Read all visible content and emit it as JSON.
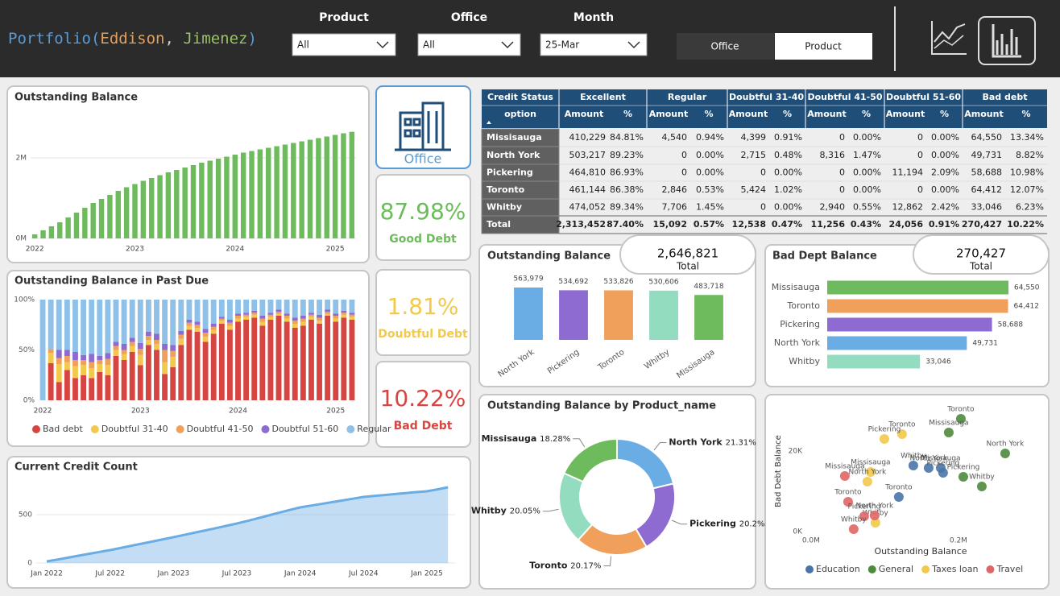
{
  "header": {
    "title": "Portfolio(Eddison, Jimenez)",
    "filters": [
      {
        "label": "Product",
        "value": "All"
      },
      {
        "label": "Office",
        "value": "All"
      },
      {
        "label": "Month",
        "value": "25-Mar"
      }
    ],
    "toggle": [
      "Office",
      "Product"
    ]
  },
  "kpis": {
    "icon_label": "Office",
    "items": [
      {
        "value": "87.98%",
        "label": "Good Debt",
        "color": "#6dbb5d"
      },
      {
        "value": "1.81%",
        "label": "Doubtful Debt",
        "color": "#f2c94c"
      },
      {
        "value": "10.22%",
        "label": "Bad Debt",
        "color": "#d64541"
      }
    ]
  },
  "table": {
    "group_headers": [
      "Credit Status",
      "Excellent",
      "Regular",
      "Doubtful 31-40",
      "Doubtful 41-50",
      "Doubtful 51-60",
      "Bad debt"
    ],
    "sub_headers": [
      "option",
      "Amount",
      "%",
      "Amount",
      "%",
      "Amount",
      "%",
      "Amount",
      "%",
      "Amount",
      "%",
      "Amount",
      "%"
    ],
    "rows": [
      [
        "Missisauga",
        "410,229",
        "84.81%",
        "4,540",
        "0.94%",
        "4,399",
        "0.91%",
        "0",
        "0.00%",
        "0",
        "0.00%",
        "64,550",
        "13.34%"
      ],
      [
        "North York",
        "503,217",
        "89.23%",
        "0",
        "0.00%",
        "2,715",
        "0.48%",
        "8,316",
        "1.47%",
        "0",
        "0.00%",
        "49,731",
        "8.82%"
      ],
      [
        "Pickering",
        "464,810",
        "86.93%",
        "0",
        "0.00%",
        "0",
        "0.00%",
        "0",
        "0.00%",
        "11,194",
        "2.09%",
        "58,688",
        "10.98%"
      ],
      [
        "Toronto",
        "461,144",
        "86.38%",
        "2,846",
        "0.53%",
        "5,424",
        "1.02%",
        "0",
        "0.00%",
        "0",
        "0.00%",
        "64,412",
        "12.07%"
      ],
      [
        "Whitby",
        "474,052",
        "89.34%",
        "7,706",
        "1.45%",
        "0",
        "0.00%",
        "2,940",
        "0.55%",
        "12,862",
        "2.42%",
        "33,046",
        "6.23%"
      ],
      [
        "Total",
        "2,313,452",
        "87.40%",
        "15,092",
        "0.57%",
        "12,538",
        "0.47%",
        "11,256",
        "0.43%",
        "24,056",
        "0.91%",
        "270,427",
        "10.22%"
      ]
    ]
  },
  "chart_data": [
    {
      "type": "bar",
      "title": "Outstanding Balance",
      "categories": [
        "2022",
        null,
        null,
        null,
        null,
        null,
        null,
        null,
        null,
        null,
        null,
        null,
        "2023",
        null,
        null,
        null,
        null,
        null,
        null,
        null,
        null,
        null,
        null,
        null,
        "2024",
        null,
        null,
        null,
        null,
        null,
        null,
        null,
        null,
        null,
        null,
        null,
        "2025",
        null,
        null
      ],
      "values": [
        100000,
        200000,
        300000,
        400000,
        520000,
        640000,
        760000,
        880000,
        980000,
        1080000,
        1180000,
        1270000,
        1350000,
        1430000,
        1500000,
        1570000,
        1640000,
        1700000,
        1760000,
        1820000,
        1880000,
        1930000,
        1980000,
        2030000,
        2080000,
        2130000,
        2170000,
        2210000,
        2250000,
        2290000,
        2330000,
        2370000,
        2410000,
        2450000,
        2490000,
        2530000,
        2570000,
        2610000,
        2646821
      ],
      "color": "#6dbb5d",
      "ylim": [
        0,
        2700000
      ],
      "yticks": [
        {
          "value": 0,
          "label": "0M"
        },
        {
          "value": 2000000,
          "label": "2M"
        }
      ],
      "grid": true
    },
    {
      "type": "stacked_bar",
      "title": "Outstanding Balance in Past Due",
      "categories": [
        "2022",
        null,
        null,
        null,
        null,
        null,
        null,
        null,
        null,
        null,
        null,
        null,
        "2023",
        null,
        null,
        null,
        null,
        null,
        null,
        null,
        null,
        null,
        null,
        null,
        "2024",
        null,
        null,
        null,
        null,
        null,
        null,
        null,
        null,
        null,
        null,
        null,
        "2025",
        null,
        null
      ],
      "series": [
        {
          "name": "Bad debt",
          "color": "#d64541",
          "values": [
            0,
            37,
            18,
            30,
            22,
            25,
            22,
            28,
            25,
            44,
            40,
            48,
            35,
            55,
            50,
            26,
            33,
            55,
            70,
            68,
            58,
            66,
            76,
            70,
            78,
            80,
            82,
            74,
            80,
            84,
            78,
            72,
            74,
            80,
            76,
            84,
            78,
            82,
            80
          ]
        },
        {
          "name": "Doubtful 31-40",
          "color": "#f2c94c",
          "values": [
            0,
            10,
            18,
            8,
            12,
            10,
            10,
            8,
            10,
            6,
            6,
            6,
            10,
            5,
            6,
            12,
            10,
            6,
            4,
            4,
            5,
            4,
            3,
            4,
            3,
            3,
            3,
            4,
            3,
            2,
            3,
            4,
            4,
            3,
            3,
            2,
            3,
            3,
            3
          ]
        },
        {
          "name": "Doubtful 41-50",
          "color": "#f0a05a",
          "values": [
            0,
            4,
            6,
            6,
            6,
            5,
            6,
            4,
            6,
            4,
            4,
            4,
            6,
            4,
            4,
            12,
            6,
            4,
            3,
            3,
            4,
            3,
            2,
            3,
            3,
            2,
            2,
            3,
            2,
            2,
            3,
            3,
            3,
            2,
            3,
            2,
            3,
            2,
            2
          ]
        },
        {
          "name": "Doubtful 51-60",
          "color": "#8e6bd1",
          "values": [
            0,
            0,
            8,
            6,
            8,
            5,
            8,
            4,
            6,
            4,
            6,
            4,
            6,
            4,
            6,
            6,
            6,
            4,
            3,
            3,
            4,
            3,
            2,
            3,
            2,
            2,
            2,
            3,
            2,
            2,
            2,
            3,
            3,
            2,
            3,
            2,
            2,
            2,
            2
          ]
        },
        {
          "name": "Regular",
          "color": "#8fc1e8",
          "values": [
            100,
            49,
            50,
            50,
            52,
            55,
            54,
            56,
            53,
            42,
            44,
            38,
            43,
            32,
            34,
            44,
            45,
            31,
            20,
            22,
            29,
            24,
            17,
            20,
            14,
            13,
            11,
            16,
            13,
            10,
            14,
            18,
            16,
            13,
            15,
            10,
            14,
            11,
            13
          ]
        }
      ],
      "ylim": [
        0,
        100
      ],
      "yticks": [
        {
          "value": 0,
          "label": "0%"
        },
        {
          "value": 50,
          "label": "50%"
        },
        {
          "value": 100,
          "label": "100%"
        }
      ],
      "legend": "bottom"
    },
    {
      "type": "area",
      "title": "Current Credit Count",
      "categories": [
        "Jan 2022",
        null,
        null,
        null,
        null,
        null,
        "Jul 2022",
        null,
        null,
        null,
        null,
        null,
        "Jan 2023",
        null,
        null,
        null,
        null,
        null,
        "Jul 2023",
        null,
        null,
        null,
        null,
        null,
        "Jan 2024",
        null,
        null,
        null,
        null,
        null,
        "Jul 2024",
        null,
        null,
        null,
        null,
        null,
        "Jan 2025",
        null,
        null
      ],
      "values": [
        17,
        35,
        55,
        75,
        95,
        114,
        133,
        155,
        178,
        200,
        222,
        245,
        267,
        290,
        313,
        337,
        360,
        384,
        408,
        435,
        463,
        492,
        520,
        548,
        575,
        593,
        611,
        629,
        647,
        665,
        683,
        693,
        703,
        713,
        723,
        733,
        742,
        762,
        783
      ],
      "color": "#6aade4",
      "ylim": [
        0,
        900
      ],
      "yticks": [
        0,
        500
      ],
      "grid": true
    },
    {
      "type": "bar",
      "title": "Outstanding Balance",
      "total": "2,646,821",
      "total_label": "Total",
      "categories": [
        "North York",
        "Pickering",
        "Toronto",
        "Whitby",
        "Missisauga"
      ],
      "values": [
        563979,
        534692,
        533826,
        530606,
        483718
      ],
      "value_labels": [
        "563,979",
        "534,692",
        "533,826",
        "530,606",
        "483,718"
      ],
      "colors": [
        "#6aade4",
        "#8e6bd1",
        "#f0a05a",
        "#94dcc0",
        "#6dbb5d"
      ]
    },
    {
      "type": "hbar",
      "title": "Bad Dept Balance",
      "total": "270,427",
      "total_label": "Total",
      "categories": [
        "Missisauga",
        "Toronto",
        "Pickering",
        "North York",
        "Whitby"
      ],
      "values": [
        64550,
        64412,
        58688,
        49731,
        33046
      ],
      "value_labels": [
        "64,550",
        "64,412",
        "58,688",
        "49,731",
        "33,046"
      ],
      "colors": [
        "#6dbb5d",
        "#f0a05a",
        "#8e6bd1",
        "#6aade4",
        "#94dcc0"
      ]
    },
    {
      "type": "donut",
      "title": "Outstanding Balance by Product_name",
      "categories": [
        "North York",
        "Pickering",
        "Toronto",
        "Whitby",
        "Missisauga"
      ],
      "values": [
        21.31,
        20.2,
        20.17,
        20.05,
        18.28
      ],
      "value_labels": [
        "21.31%",
        "20.2%",
        "20.17%",
        "20.05%",
        "18.28%"
      ],
      "colors": [
        "#6aade4",
        "#8e6bd1",
        "#f0a05a",
        "#94dcc0",
        "#6dbb5d"
      ]
    },
    {
      "type": "scatter",
      "x_label": "Outstanding Balance",
      "y_label": "Bad Debt Balance",
      "series": [
        {
          "name": "Education",
          "color": "#4a74a8",
          "labels": [
            "Whitby",
            "North York",
            "Missisauga",
            "Pickering",
            "Toronto"
          ],
          "x": [
            138800,
            159600,
            176000,
            179200,
            119100
          ],
          "values": [
            16400,
            15800,
            15800,
            14600,
            8600
          ]
        },
        {
          "name": "General",
          "color": "#4e8a3e",
          "labels": [
            "Toronto",
            "Missisauga",
            "North York",
            "Pickering",
            "Whitby"
          ],
          "x": [
            203300,
            186900,
            263400,
            206600,
            231700
          ],
          "values": [
            28000,
            24600,
            19400,
            13600,
            11200
          ]
        },
        {
          "name": "Taxes loan",
          "color": "#f2c94c",
          "labels": [
            "Toronto",
            "Pickering",
            "Missisauga",
            "North York",
            "Whitby"
          ],
          "x": [
            123500,
            99500,
            80900,
            76500,
            87400
          ],
          "values": [
            24200,
            23000,
            14800,
            12400,
            2200
          ]
        },
        {
          "name": "Travel",
          "color": "#e06666",
          "labels": [
            "Missisauga",
            "Toronto",
            "Pickering",
            "Whitby",
            "North York"
          ],
          "x": [
            45900,
            50300,
            72100,
            57900,
            86300
          ],
          "values": [
            13800,
            7400,
            3800,
            600,
            4000
          ]
        }
      ],
      "xlim": [
        -25000,
        305000
      ],
      "ylim": [
        -2000,
        30000
      ],
      "xticks": [
        {
          "value": 0,
          "label": "0.0M"
        },
        {
          "value": 200000,
          "label": "0.2M"
        }
      ],
      "yticks": [
        {
          "value": 0,
          "label": "0K"
        },
        {
          "value": 20000,
          "label": "20K"
        }
      ],
      "legend": "bottom"
    }
  ]
}
